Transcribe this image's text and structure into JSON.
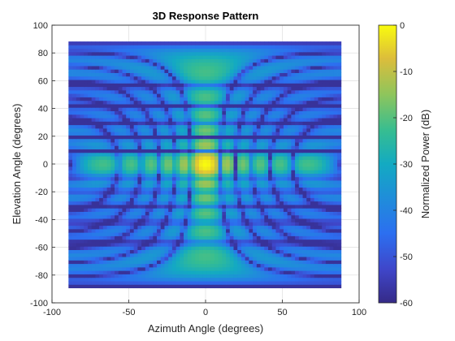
{
  "chart_data": {
    "type": "heatmap",
    "title": "3D Response Pattern",
    "xlabel": "Azimuth Angle (degrees)",
    "ylabel": "Elevation Angle (degrees)",
    "xlim": [
      -100,
      100
    ],
    "ylim": [
      -100,
      100
    ],
    "xticks": [
      -100,
      -50,
      0,
      50,
      100
    ],
    "yticks": [
      -100,
      -80,
      -60,
      -40,
      -20,
      0,
      20,
      40,
      60,
      80,
      100
    ],
    "grid": true,
    "colorbar": {
      "label": "Normalized Power (dB)",
      "range": [
        -60,
        0
      ],
      "ticks": [
        0,
        -10,
        -20,
        -30,
        -40,
        -50,
        -60
      ],
      "colormap": "parula"
    },
    "pattern": {
      "peak": {
        "az": 0,
        "el": 0,
        "power_db": 0
      },
      "main_cuts": [
        "az = 0 (vertical)",
        "el = 0 (horizontal)"
      ],
      "azimuth_extent": [
        -88,
        88
      ],
      "elevation_extent": [
        -88,
        88
      ],
      "background_level_db": -58
    }
  },
  "colors": {
    "background_level": "#3b2fa8",
    "mid_level": "#1ea7d6",
    "high_level": "#6fcf7a",
    "peak": "#f9e81f"
  }
}
